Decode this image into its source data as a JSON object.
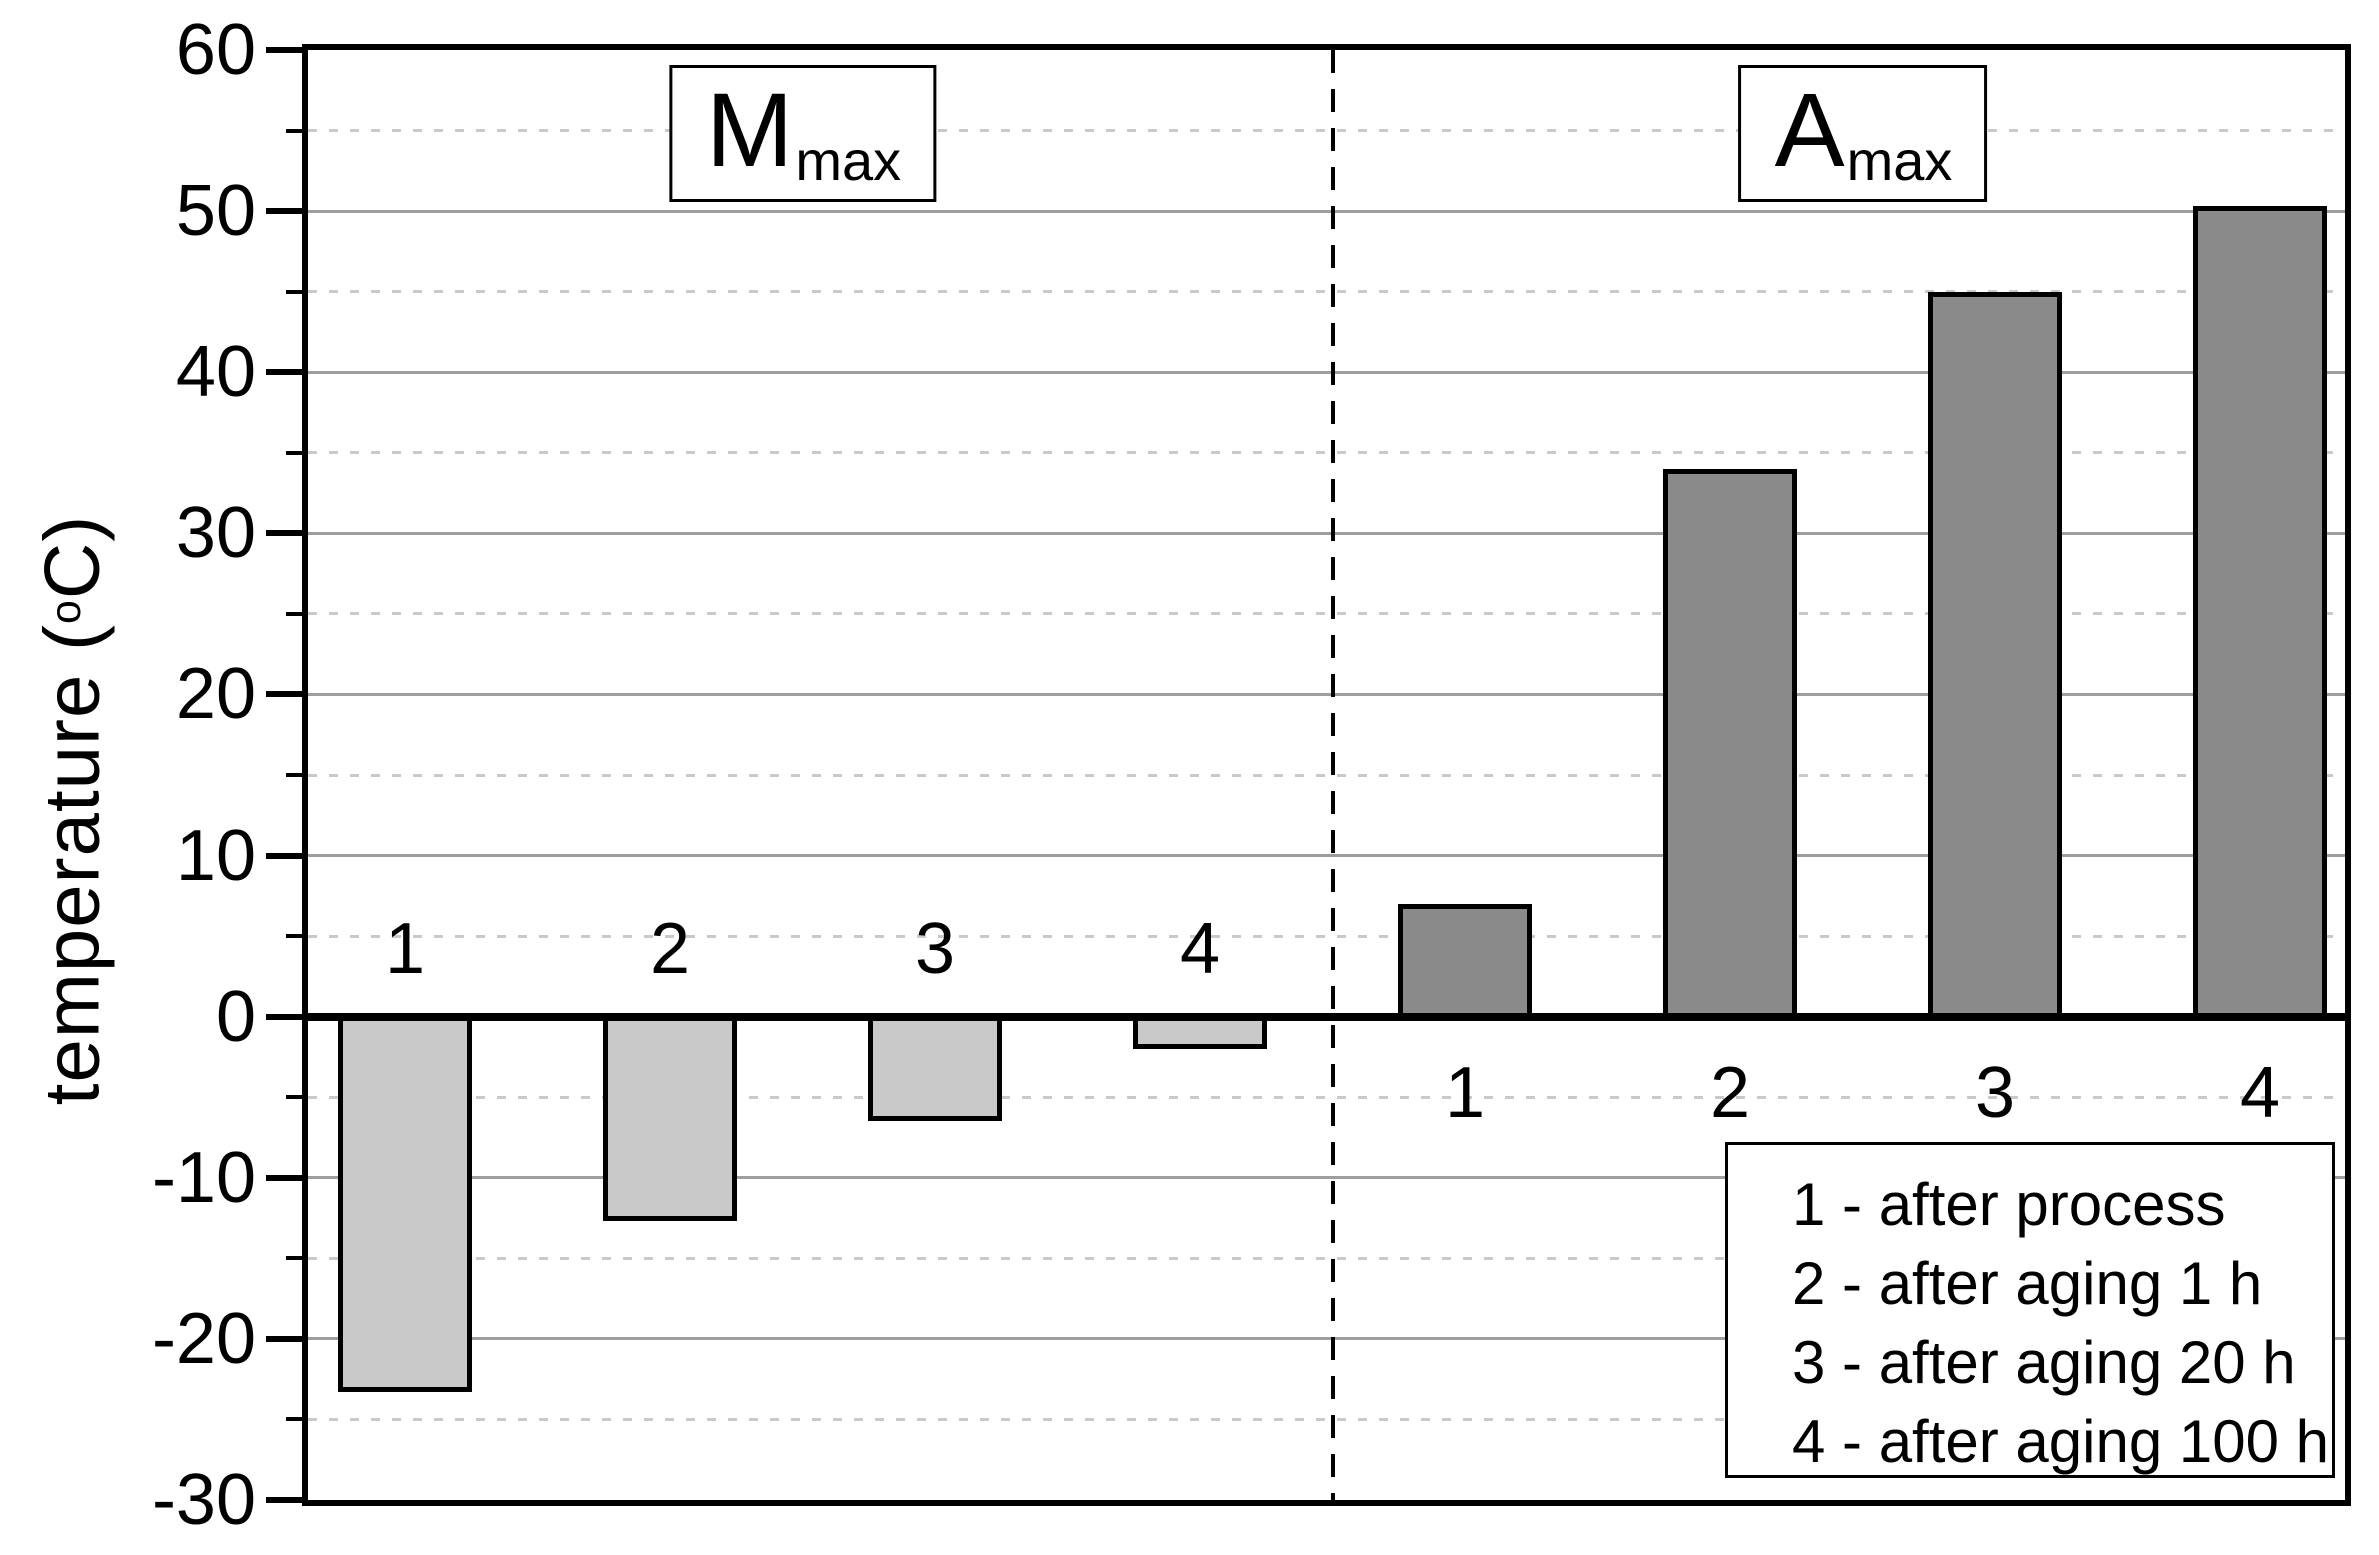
{
  "chart_data": {
    "type": "bar",
    "title": "",
    "ylabel": {
      "prefix": "temperature (",
      "sup": "o",
      "suffix": "C)"
    },
    "ylim": [
      -30,
      60
    ],
    "yticks": [
      60,
      50,
      40,
      30,
      20,
      10,
      0,
      -10,
      -20,
      -30
    ],
    "ytick_minor_step": 5,
    "grid": {
      "major": "solid",
      "minor": "dotted"
    },
    "zero_line": true,
    "separator": "vertical-dashed-between-groups",
    "groups": [
      {
        "id": "mmax",
        "label_main": "M",
        "label_sub": "max",
        "bar_color": "#c8c8c8",
        "categories": [
          "1",
          "2",
          "3",
          "4"
        ],
        "values": [
          -23.3,
          -12.7,
          -6.5,
          -2.0
        ]
      },
      {
        "id": "amax",
        "label_main": "A",
        "label_sub": "max",
        "bar_color": "#8a8a8a",
        "categories": [
          "1",
          "2",
          "3",
          "4"
        ],
        "values": [
          7.0,
          34.0,
          45.0,
          50.3
        ]
      }
    ],
    "legend": [
      "1 - after process",
      "2 - after aging 1 h",
      "3 - after aging 20 h",
      "4 - after aging 100 h"
    ],
    "legend_position": "bottom-right"
  },
  "colors": {
    "background": "#ffffff",
    "axis": "#000000",
    "bar_light": "#c8c8c8",
    "bar_dark": "#8a8a8a",
    "grid_major": "#9e9e9e",
    "grid_minor": "#c9c9c9"
  }
}
